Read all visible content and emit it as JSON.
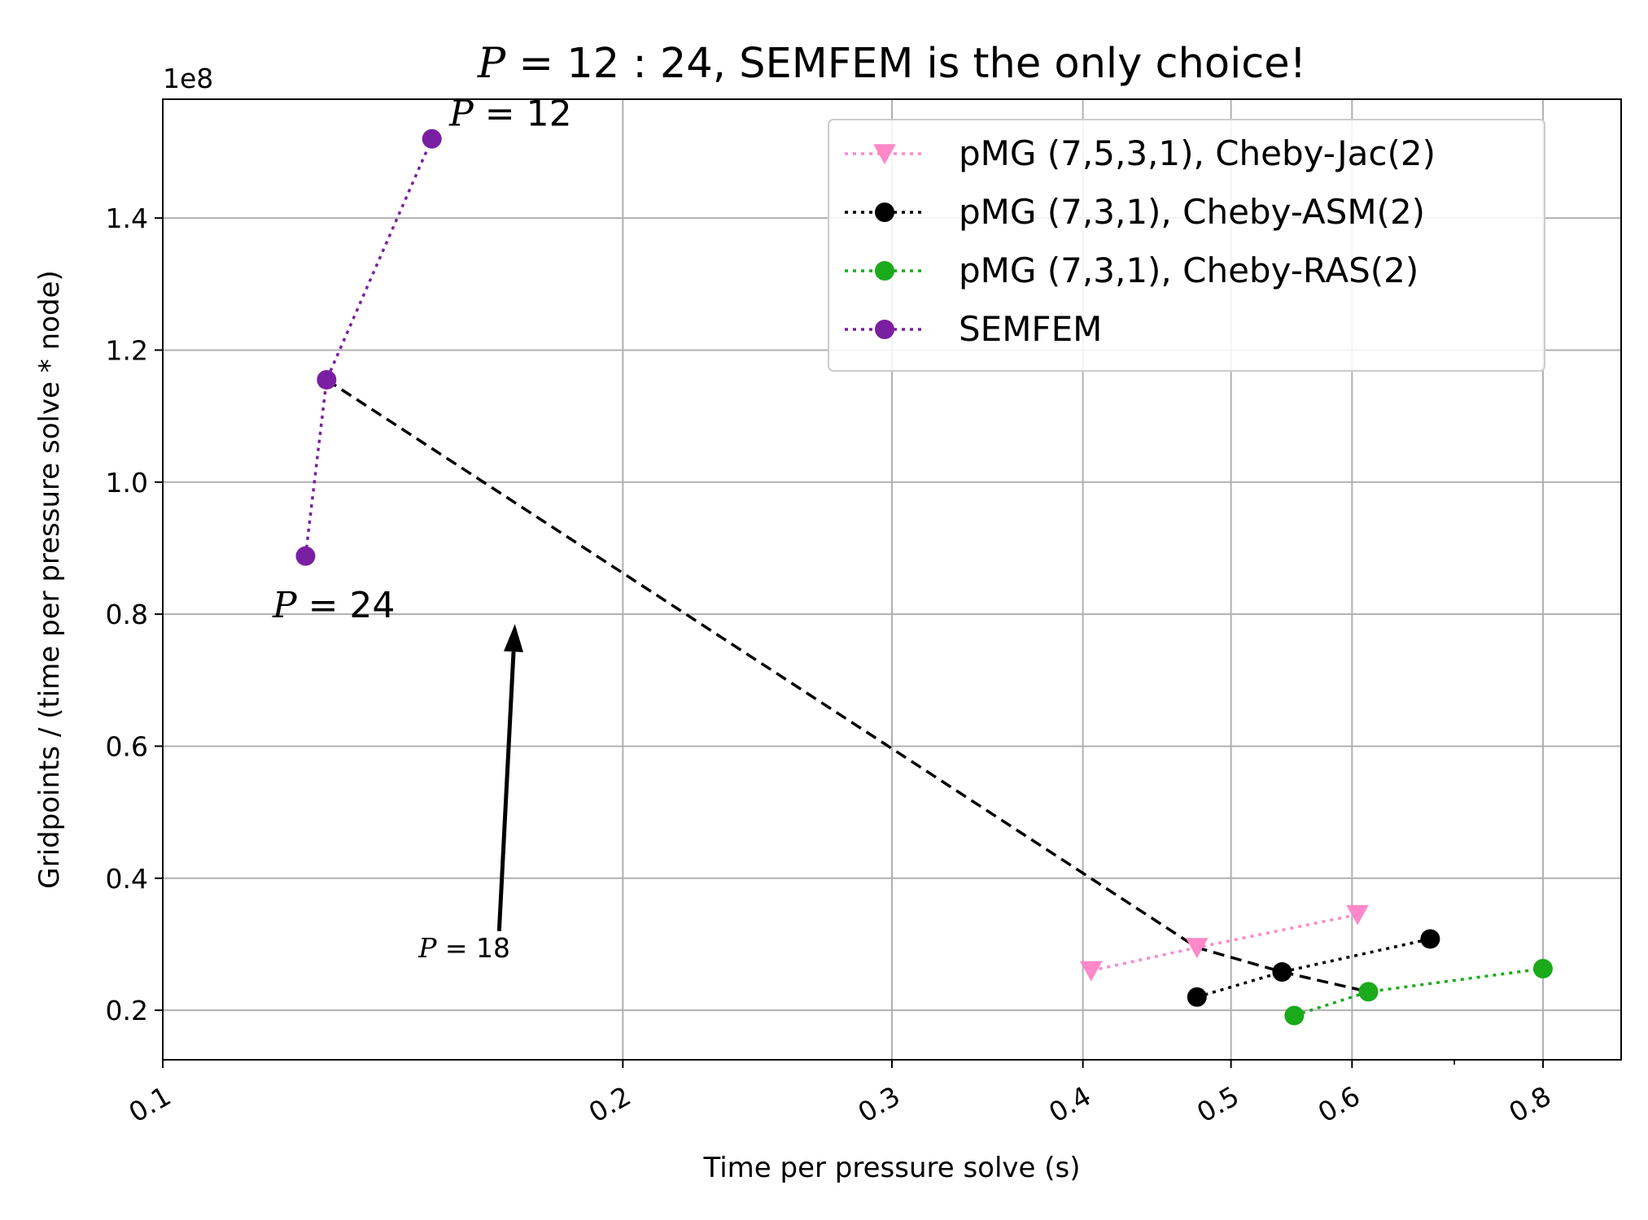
{
  "chart_data": {
    "type": "scatter",
    "title_prefix": "P",
    "title_rest": " = 12 : 24, SEMFEM is the only choice!",
    "xlabel": "Time per pressure solve (s)",
    "ylabel": "Gridpoints / (time per pressure solve * node)",
    "y_scale_label": "1e8",
    "x_scale": "log",
    "xlim": [
      0.1,
      0.9
    ],
    "ylim": [
      0.125,
      1.58
    ],
    "x_ticks": [
      0.1,
      0.2,
      0.3,
      0.4,
      0.5,
      0.6,
      0.8
    ],
    "x_tick_labels": [
      "0.1",
      "0.2",
      "0.3",
      "0.4",
      "0.5",
      "0.6",
      "0.8"
    ],
    "x_minor_ticks": [
      0.7
    ],
    "y_ticks": [
      0.2,
      0.4,
      0.6,
      0.8,
      1.0,
      1.2,
      1.4
    ],
    "y_tick_labels": [
      "0.2",
      "0.4",
      "0.6",
      "0.8",
      "1.0",
      "1.2",
      "1.4"
    ],
    "grid": true,
    "legend_position": "top-right",
    "series": [
      {
        "name": "pMG (7,5,3,1), Cheby-Jac(2)",
        "color": "#ff88c8",
        "marker": "triangle-down",
        "line": "dotted",
        "x": [
          0.405,
          0.475,
          0.605
        ],
        "y": [
          0.26,
          0.295,
          0.345
        ]
      },
      {
        "name": "pMG (7,3,1), Cheby-ASM(2)",
        "color": "#000000",
        "marker": "circle",
        "line": "dotted",
        "x": [
          0.475,
          0.54,
          0.675
        ],
        "y": [
          0.22,
          0.258,
          0.308
        ]
      },
      {
        "name": "pMG (7,3,1), Cheby-RAS(2)",
        "color": "#1aaa1a",
        "marker": "circle",
        "line": "dotted",
        "x": [
          0.55,
          0.615,
          0.8
        ],
        "y": [
          0.192,
          0.228,
          0.263
        ]
      },
      {
        "name": "SEMFEM",
        "color": "#7b1fa2",
        "marker": "circle",
        "line": "dotted",
        "x": [
          0.124,
          0.128,
          0.15
        ],
        "y": [
          0.888,
          1.155,
          1.52
        ]
      }
    ],
    "reference_line": {
      "color": "#000000",
      "style": "dashed",
      "x": [
        0.128,
        0.475,
        0.54,
        0.615
      ],
      "y": [
        1.155,
        0.295,
        0.258,
        0.228
      ]
    },
    "annotations": [
      {
        "var": "P",
        "rest": " = 12",
        "x": 0.154,
        "y": 1.54,
        "size": 44
      },
      {
        "var": "P",
        "rest": " = 24",
        "x": 0.118,
        "y": 0.795,
        "size": 44
      },
      {
        "var": "P",
        "rest": " = 18",
        "x": 0.147,
        "y": 0.28,
        "size": 33
      }
    ],
    "arrow": {
      "from": [
        0.166,
        0.32
      ],
      "to": [
        0.17,
        0.785
      ]
    }
  }
}
